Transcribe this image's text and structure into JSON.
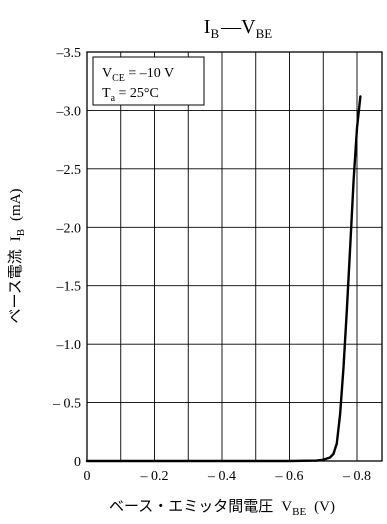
{
  "chart_data": {
    "type": "line",
    "title": {
      "main": "I",
      "main_sub": "B",
      "dash": "—",
      "rhs": "V",
      "rhs_sub": "BE"
    },
    "condition": {
      "line1": {
        "v": "V",
        "sub": "CE",
        "rest": " = –10 V"
      },
      "line2": {
        "v": "T",
        "sub": "a",
        "rest": " = 25°C"
      }
    },
    "ylabel": {
      "jp": "ベース電流",
      "var": "I",
      "sub": "B",
      "unit": "(mA)"
    },
    "xlabel": {
      "jp": "ベース・エミッタ間電圧",
      "var": "V",
      "sub": "BE",
      "unit": "(V)"
    },
    "xlim": [
      0,
      -0.8
    ],
    "ylim": [
      0,
      -3.5
    ],
    "x_ticks": [
      {
        "v": 0,
        "label": "0"
      },
      {
        "v": -0.2,
        "label": "– 0.2"
      },
      {
        "v": -0.4,
        "label": "– 0.4"
      },
      {
        "v": -0.6,
        "label": "– 0.6"
      },
      {
        "v": -0.8,
        "label": "– 0.8"
      }
    ],
    "y_ticks": [
      {
        "v": 0,
        "label": "0"
      },
      {
        "v": -0.5,
        "label": "– 0.5"
      },
      {
        "v": -1.0,
        "label": "–1.0"
      },
      {
        "v": -1.5,
        "label": "–1.5"
      },
      {
        "v": -2.0,
        "label": "–2.0"
      },
      {
        "v": -2.5,
        "label": "–2.5"
      },
      {
        "v": -3.0,
        "label": "–3.0"
      },
      {
        "v": -3.5,
        "label": "–3.5"
      }
    ],
    "x_gridlines": [
      -0.1,
      -0.2,
      -0.3,
      -0.4,
      -0.5,
      -0.6,
      -0.7,
      -0.8
    ],
    "y_gridlines": [
      -0.5,
      -1.0,
      -1.5,
      -2.0,
      -2.5,
      -3.0
    ],
    "grid": true,
    "series": [
      {
        "color": "#000000",
        "x": [
          0,
          -0.6,
          -0.68,
          -0.7,
          -0.72,
          -0.73,
          -0.74,
          -0.75,
          -0.76,
          -0.77,
          -0.78,
          -0.79,
          -0.8,
          -0.81
        ],
        "y": [
          0,
          0,
          -0.003,
          -0.01,
          -0.03,
          -0.06,
          -0.15,
          -0.4,
          -0.8,
          -1.3,
          -1.85,
          -2.4,
          -2.85,
          -3.12
        ]
      }
    ]
  }
}
